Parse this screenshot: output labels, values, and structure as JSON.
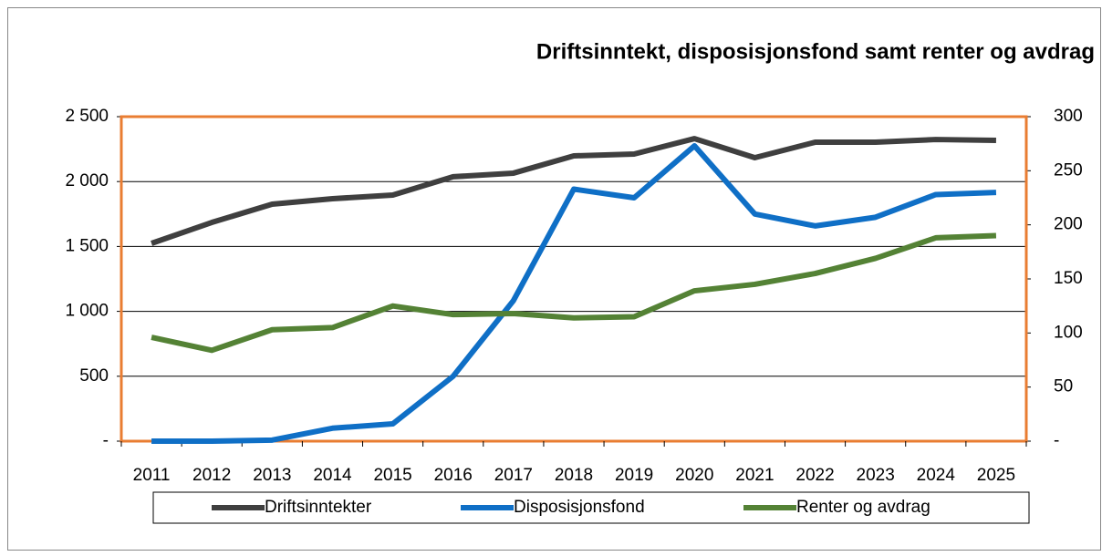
{
  "chart_data": {
    "type": "line",
    "title": "Driftsinntekt, disposisjonsfond samt renter og avdrag",
    "categories": [
      "2011",
      "2012",
      "2013",
      "2014",
      "2015",
      "2016",
      "2017",
      "2018",
      "2019",
      "2020",
      "2021",
      "2022",
      "2023",
      "2024",
      "2025"
    ],
    "series": [
      {
        "name": "Driftsinntekter",
        "color": "#3f3f3f",
        "values": [
          1524,
          1685,
          1826,
          1868,
          1896,
          2037,
          2065,
          2198,
          2212,
          2331,
          2184,
          2303,
          2303,
          2324,
          2317
        ]
      },
      {
        "name": "Disposisjonsfond",
        "color": "#0f6fc6",
        "axis": "y2",
        "values": [
          0,
          0,
          1,
          12,
          16,
          60,
          130,
          233,
          225,
          273,
          210,
          199,
          207,
          228,
          230
        ]
      },
      {
        "name": "Renter og avdrag",
        "color": "#548235",
        "axis": "y2",
        "values": [
          96,
          84,
          103,
          105,
          125,
          117,
          118,
          114,
          115,
          139,
          145,
          155,
          169,
          188,
          190
        ]
      }
    ],
    "ylim": [
      0,
      2500
    ],
    "yticks": [
      {
        "value": 0,
        "label": "-"
      },
      500,
      {
        "value": 1000,
        "label": "1 000"
      },
      {
        "value": 1500,
        "label": "1 500"
      },
      {
        "value": 2000,
        "label": "2 000"
      },
      {
        "value": 2500,
        "label": "2 500"
      }
    ],
    "y2lim": [
      0,
      300
    ],
    "y2ticks": [
      {
        "value": 0,
        "label": "-"
      },
      50,
      100,
      150,
      200,
      250,
      300
    ],
    "grid": true,
    "legend": "bottom"
  }
}
